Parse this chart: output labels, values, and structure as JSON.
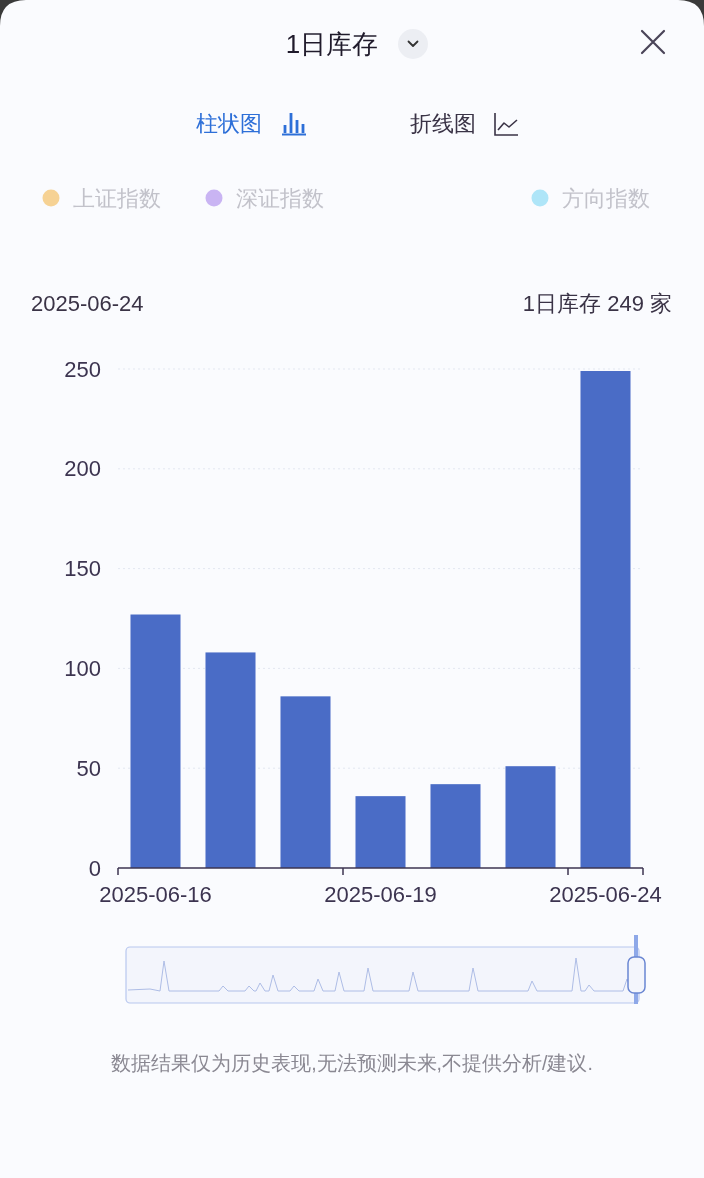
{
  "chart_data": {
    "type": "bar",
    "title": "1日库存",
    "categories": [
      "2025-06-16",
      null,
      null,
      "2025-06-19",
      null,
      null,
      "2025-06-24"
    ],
    "values": [
      127,
      108,
      86,
      36,
      42,
      51,
      249
    ],
    "color": "#4a6cc6",
    "ylim": [
      0,
      250
    ],
    "yticks": [
      0,
      50,
      100,
      150,
      200,
      250
    ],
    "grid": "y",
    "annotations": [
      "柱状图",
      "折线图",
      "上证指数",
      "深证指数",
      "方向指数",
      "2025-06-24",
      "1日库存 249 家",
      "数据结果仅为历史表现,无法预测未来,不提供分析/建议."
    ]
  }
}
